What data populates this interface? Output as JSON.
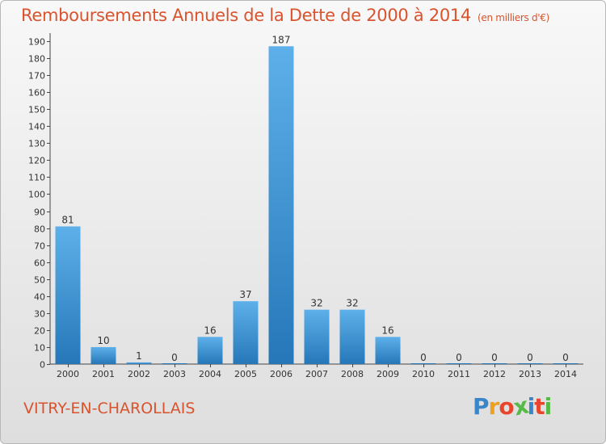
{
  "header": {
    "title": "Remboursements Annuels de la Dette de 2000 à 2014",
    "unit": "(en milliers d'€)"
  },
  "footer": {
    "town": "VITRY-EN-CHAROLLAIS",
    "logo": [
      "P",
      "r",
      "o",
      "x",
      "i",
      "t",
      "i"
    ]
  },
  "colors": {
    "accent": "#d9532d",
    "bar_light": "#5eb0ea",
    "bar_dark": "#2677b8",
    "logo": [
      "#3a86c8",
      "#f0a020",
      "#e8452c",
      "#57b947",
      "#3a86c8",
      "#e8452c",
      "#57b947"
    ]
  },
  "chart_data": {
    "type": "bar",
    "categories": [
      "2000",
      "2001",
      "2002",
      "2003",
      "2004",
      "2005",
      "2006",
      "2007",
      "2008",
      "2009",
      "2010",
      "2011",
      "2012",
      "2013",
      "2014"
    ],
    "values": [
      81,
      10,
      1,
      0,
      16,
      37,
      187,
      32,
      32,
      16,
      0,
      0,
      0,
      0,
      0
    ],
    "title": "Remboursements Annuels de la Dette de 2000 à 2014",
    "unit": "(en milliers d'€)",
    "ylim": [
      0,
      190
    ],
    "yticks": [
      0,
      10,
      20,
      30,
      40,
      50,
      60,
      70,
      80,
      90,
      100,
      110,
      120,
      130,
      140,
      150,
      160,
      170,
      180,
      190
    ],
    "grid": false,
    "legend": "none"
  }
}
